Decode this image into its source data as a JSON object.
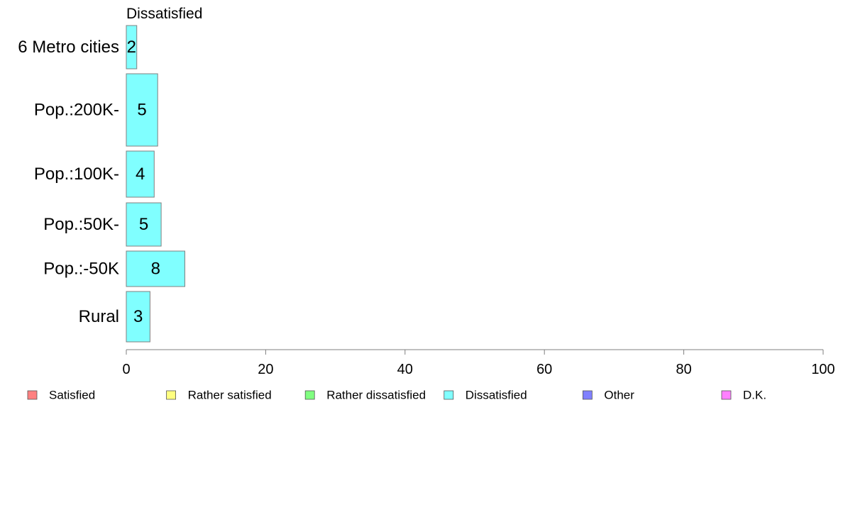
{
  "chart_data": {
    "type": "bar",
    "orientation": "horizontal",
    "title": "Dissatisfied",
    "categories": [
      "6 Metro cities",
      "Pop.:200K-",
      "Pop.:100K-",
      "Pop.:50K-",
      "Pop.:-50K",
      "Rural"
    ],
    "values": [
      1.5,
      4.5,
      4.0,
      5.0,
      8.4,
      3.4
    ],
    "value_labels": [
      "2",
      "5",
      "4",
      "5",
      "8",
      "3"
    ],
    "bar_color": "#80FFFF",
    "bar_border_color": "#7F7F7F",
    "xlim": [
      0,
      100
    ],
    "xticks": [
      "0",
      "20",
      "40",
      "60",
      "80",
      "100"
    ],
    "xlabel": "",
    "ylabel": "",
    "grid": false,
    "legend_position": "bottom",
    "legend": [
      {
        "label": "Satisfied",
        "color": "#FF8080"
      },
      {
        "label": "Rather satisfied",
        "color": "#FFFF80"
      },
      {
        "label": "Rather dissatisfied",
        "color": "#80FF80"
      },
      {
        "label": "Dissatisfied",
        "color": "#80FFFF"
      },
      {
        "label": "Other",
        "color": "#8080FF"
      },
      {
        "label": "D.K.",
        "color": "#FF80FF"
      }
    ]
  }
}
